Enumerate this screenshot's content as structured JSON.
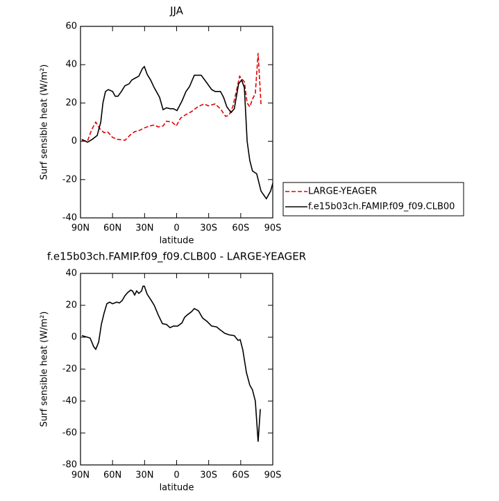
{
  "chart_data": [
    {
      "type": "line",
      "title": "JJA",
      "xlabel": "latitude",
      "ylabel": "Surf sensible heat (W/m²)",
      "xlim": [
        90,
        -90
      ],
      "ylim": [
        -40,
        60
      ],
      "xticks": [
        {
          "value": 90,
          "label": "90N"
        },
        {
          "value": 60,
          "label": "60N"
        },
        {
          "value": 30,
          "label": "30N"
        },
        0,
        {
          "value": -30,
          "label": "30S"
        },
        {
          "value": -60,
          "label": "60S"
        },
        {
          "value": -90,
          "label": "90S"
        }
      ],
      "yticks": [
        -40,
        -20,
        0,
        20,
        40,
        60
      ],
      "legend": "right",
      "series": [
        {
          "name": "LARGE-YEAGER",
          "color": "#e00000",
          "line_style": "dashed",
          "x": [
            88.7,
            83.5,
            79.6,
            75.7,
            71.8,
            68,
            64.7,
            60,
            55,
            48.4,
            43,
            39.3,
            35.4,
            30.2,
            25,
            21,
            17.2,
            12.7,
            9.4,
            4.2,
            0.3,
            -3.6,
            -8.8,
            -14,
            -19.8,
            -25.7,
            -29.6,
            -36,
            -41,
            -45.8,
            -49,
            -52.6,
            -55.9,
            -59,
            -63.4,
            -66,
            -68.5,
            -71,
            -73.7,
            -76.3,
            -79
          ],
          "values": [
            0.5,
            0,
            6,
            10,
            6.5,
            4.5,
            5,
            2,
            1,
            0.5,
            3.5,
            5,
            5.5,
            7,
            8,
            8.5,
            7.5,
            8,
            10.5,
            10,
            8,
            12,
            14,
            15.5,
            18,
            19.5,
            18.5,
            19.5,
            17,
            13,
            13.5,
            18,
            26,
            34,
            31,
            20,
            18,
            22,
            25,
            46,
            19
          ]
        },
        {
          "name": "f.e15b03ch.FAMIP.f09_f09.CLB00",
          "color": "#000000",
          "line_style": "solid",
          "x": [
            88.7,
            83.5,
            79,
            74.4,
            71,
            69,
            66.6,
            64,
            60,
            57.5,
            55,
            51.7,
            48.4,
            44.5,
            42,
            38.7,
            35.4,
            32,
            30.2,
            27.6,
            24.4,
            21,
            16,
            12.7,
            9.4,
            6.2,
            3,
            -0.3,
            -5,
            -8.8,
            -12,
            -16.6,
            -23,
            -27.6,
            -32.8,
            -36,
            -41,
            -43.9,
            -47,
            -51,
            -54,
            -58,
            -60.8,
            -63.4,
            -66,
            -68.5,
            -71,
            -75,
            -79,
            -84,
            -88,
            -90
          ],
          "values": [
            1,
            -0.5,
            1,
            3,
            10,
            20,
            26,
            27,
            26,
            23.5,
            23.5,
            26,
            29,
            30,
            32,
            33,
            34,
            38,
            39,
            35,
            32,
            28,
            23,
            16.5,
            17.5,
            17,
            17,
            16,
            21,
            26,
            28.5,
            34.5,
            34.5,
            31,
            27,
            26,
            26,
            23,
            18,
            15,
            17,
            30,
            32,
            28,
            0,
            -10,
            -15.5,
            -17,
            -26,
            -30,
            -26,
            -22
          ]
        }
      ]
    },
    {
      "type": "line",
      "title": "f.e15b03ch.FAMIP.f09_f09.CLB00 - LARGE-YEAGER",
      "xlabel": "latitude",
      "ylabel": "Surf sensible heat (W/m²)",
      "xlim": [
        90,
        -90
      ],
      "ylim": [
        -80,
        40
      ],
      "xticks": [
        {
          "value": 90,
          "label": "90N"
        },
        {
          "value": 60,
          "label": "60N"
        },
        {
          "value": 30,
          "label": "30N"
        },
        0,
        {
          "value": -30,
          "label": "30S"
        },
        {
          "value": -60,
          "label": "60S"
        },
        {
          "value": -90,
          "label": "90S"
        }
      ],
      "yticks": [
        -80,
        -60,
        -40,
        -20,
        0,
        20,
        40
      ],
      "series": [
        {
          "color": "#000000",
          "line_style": "solid",
          "x": [
            88.7,
            83.5,
            81,
            77.6,
            75.7,
            73,
            70.5,
            68,
            65.3,
            62.7,
            60,
            56,
            53.6,
            51,
            48.4,
            45.8,
            43,
            41.3,
            39.3,
            37.4,
            35.4,
            32.8,
            31.5,
            30.2,
            27.6,
            23.7,
            21,
            17.2,
            13.3,
            9.4,
            6.2,
            3,
            -1,
            -5,
            -7.5,
            -10,
            -14,
            -16.6,
            -20.5,
            -24.4,
            -28.3,
            -32.8,
            -37.4,
            -41,
            -45,
            -49,
            -54,
            -57.5,
            -59.5,
            -62,
            -65.3,
            -68.5,
            -71,
            -73.7,
            -76.3,
            -78.4
          ],
          "values": [
            1,
            0,
            -0.5,
            -6,
            -7.5,
            -3,
            8,
            15,
            21,
            22,
            21,
            22,
            21.5,
            23,
            26,
            28,
            29.5,
            29,
            26.5,
            29,
            27.5,
            29,
            32,
            32,
            27,
            23,
            20,
            14,
            8.5,
            8,
            6,
            7,
            7,
            9,
            12.5,
            14,
            16,
            18,
            16.5,
            12,
            10,
            7,
            6.5,
            4.5,
            2.5,
            1.5,
            1,
            -2,
            -1.5,
            -8,
            -22,
            -30,
            -33,
            -40,
            -65.5,
            -45
          ]
        }
      ]
    }
  ]
}
